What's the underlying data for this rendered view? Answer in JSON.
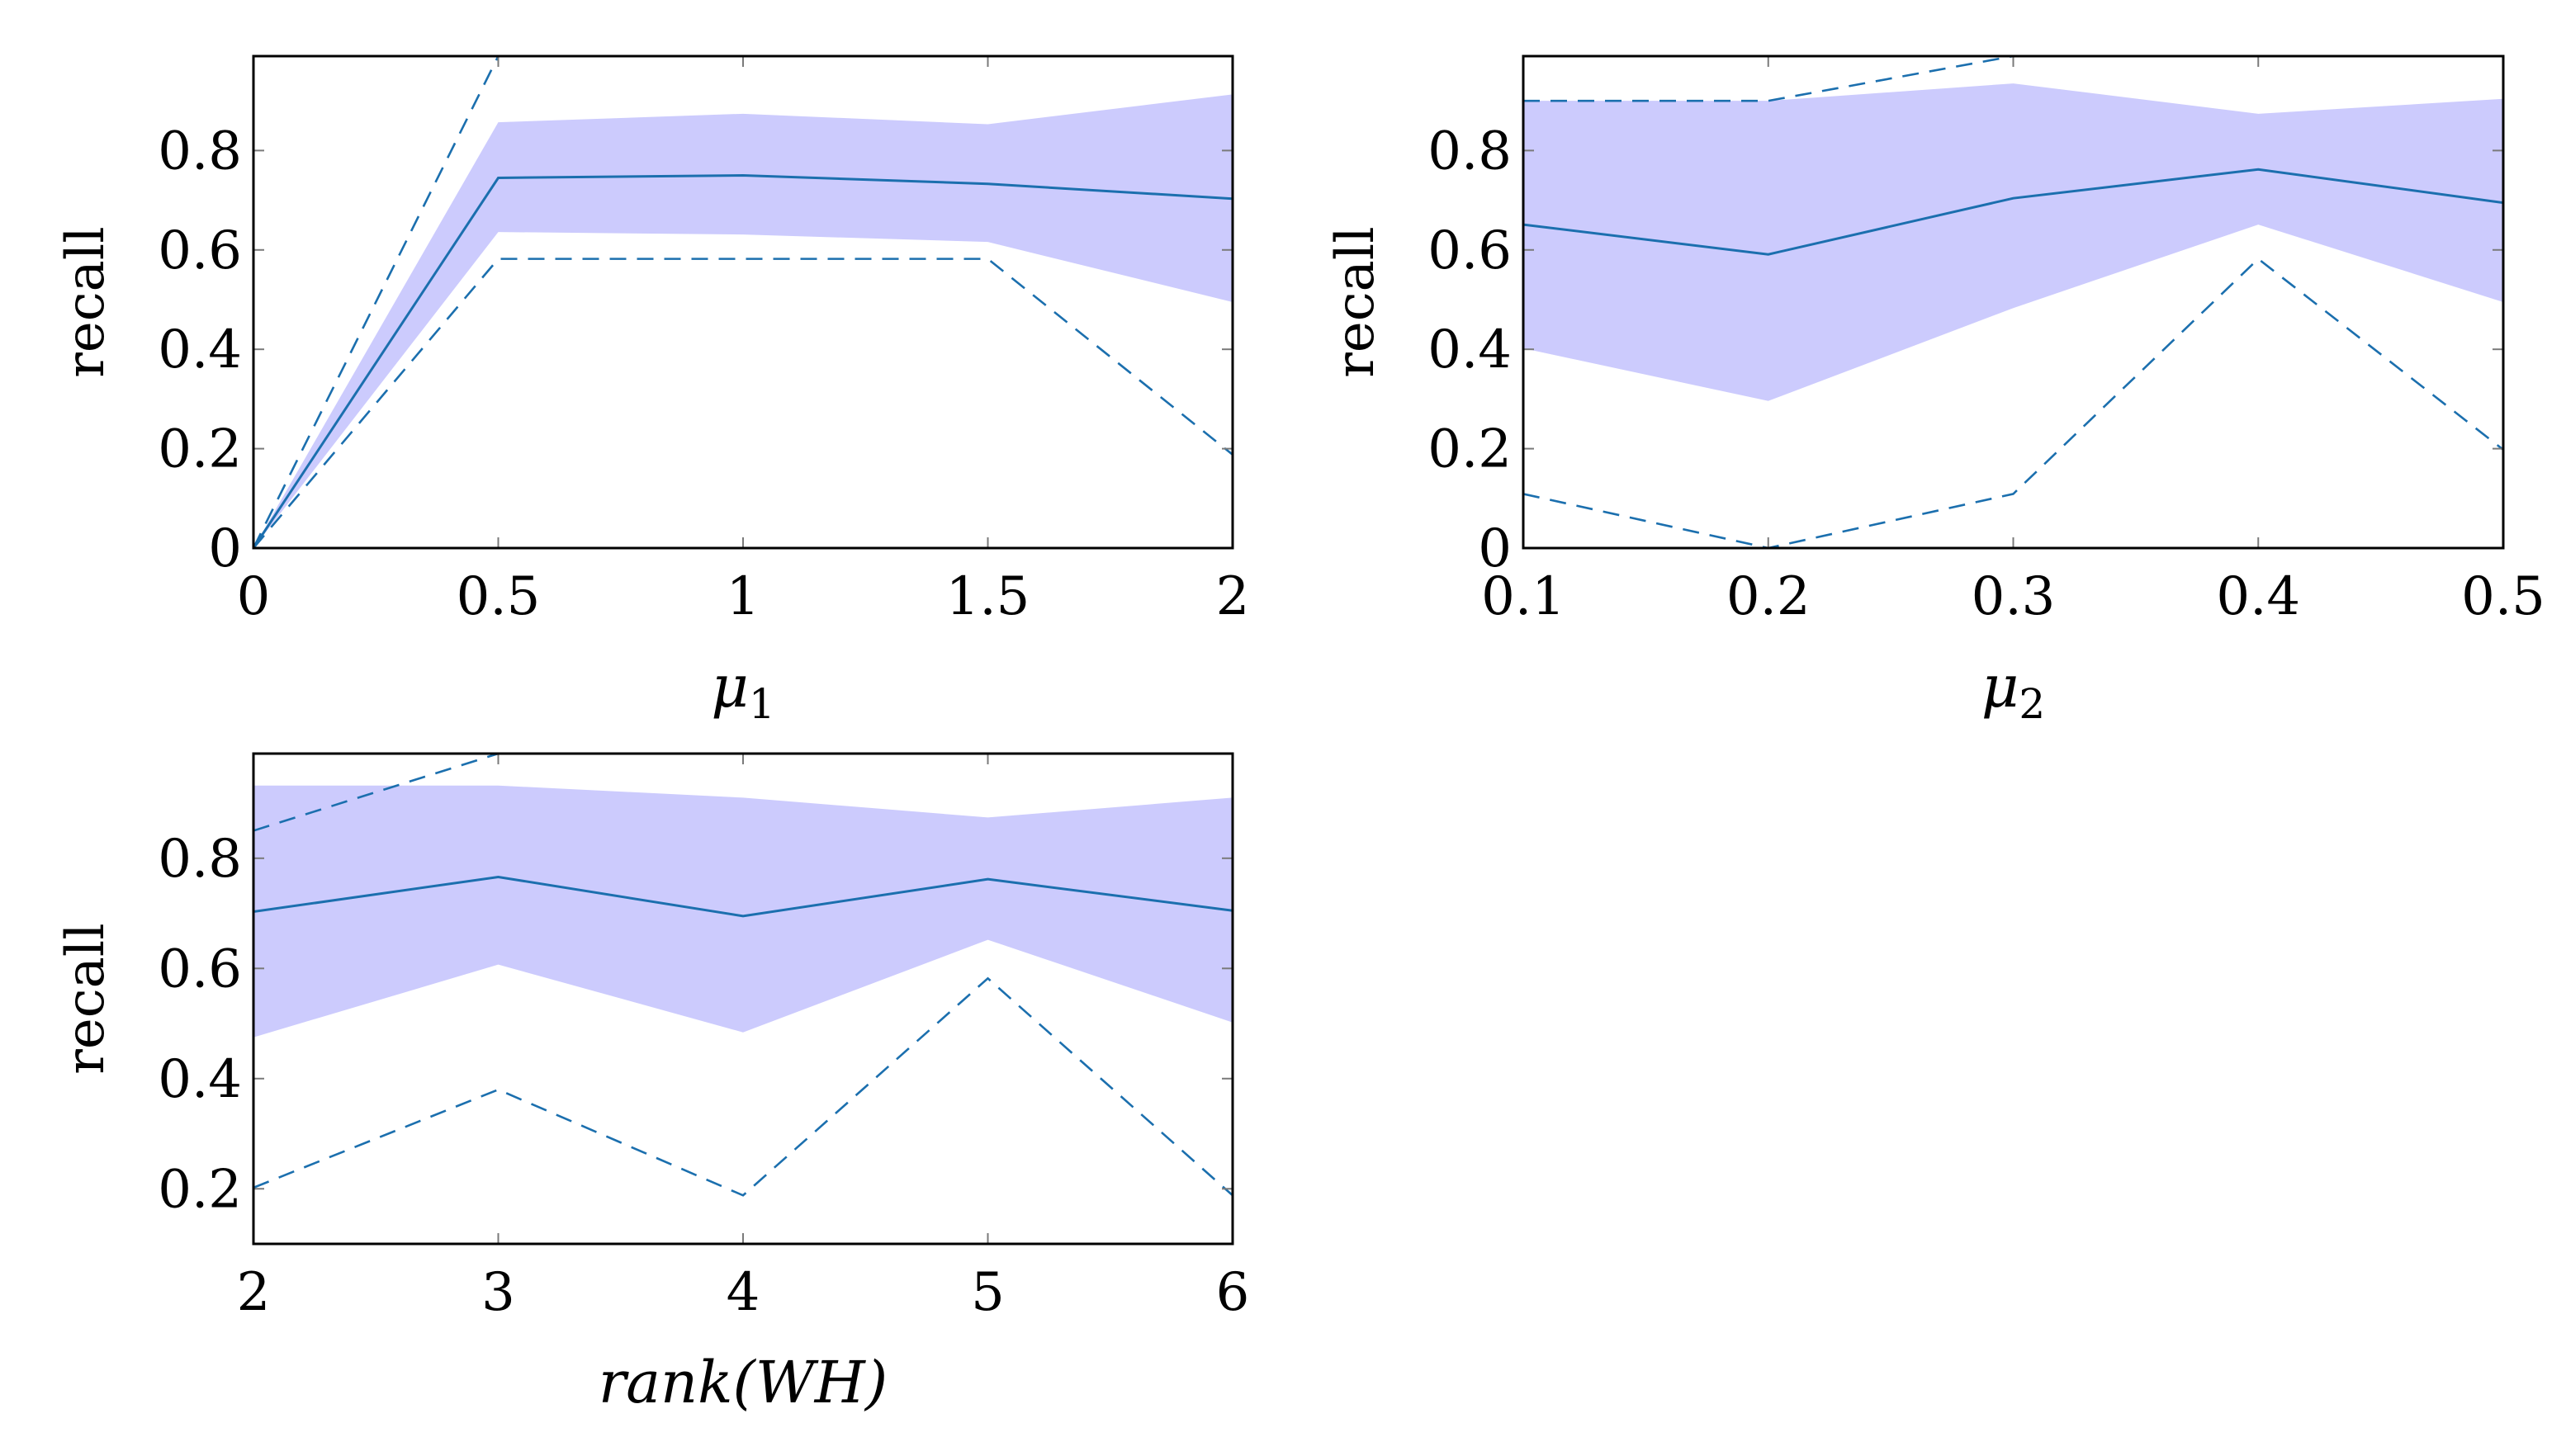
{
  "chart_data": [
    {
      "type": "line",
      "xlabel": "μ",
      "xlabel_subscript": "1",
      "ylabel": "recall",
      "xlim": [
        0,
        2
      ],
      "ylim": [
        0,
        0.99
      ],
      "x": [
        0,
        0.5,
        1,
        1.5,
        2
      ],
      "xtick_labels": [
        "0",
        "0.5",
        "1",
        "1.5",
        "2"
      ],
      "yticks": [
        0,
        0.2,
        0.4,
        0.6,
        0.8
      ],
      "ytick_labels": [
        "0",
        "0.2",
        "0.4",
        "0.6",
        "0.8"
      ],
      "series": [
        {
          "role": "mean",
          "style": "solid",
          "values": [
            0,
            0.745,
            0.75,
            0.733,
            0.703
          ]
        },
        {
          "role": "max",
          "style": "dashed",
          "values": [
            0,
            0.99,
            0.99,
            0.99,
            0.99
          ]
        },
        {
          "role": "min",
          "style": "dashed",
          "values": [
            0,
            0.582,
            0.582,
            0.582,
            0.188
          ]
        }
      ],
      "band": {
        "upper": [
          0,
          0.857,
          0.874,
          0.853,
          0.913
        ],
        "lower": [
          0,
          0.636,
          0.631,
          0.616,
          0.495
        ]
      }
    },
    {
      "type": "line",
      "xlabel": "μ",
      "xlabel_subscript": "2",
      "ylabel": "recall",
      "xlim": [
        0.1,
        0.5
      ],
      "ylim": [
        0,
        0.99
      ],
      "x": [
        0.1,
        0.2,
        0.3,
        0.4,
        0.5
      ],
      "xtick_labels": [
        "0.1",
        "0.2",
        "0.3",
        "0.4",
        "0.5"
      ],
      "yticks": [
        0,
        0.2,
        0.4,
        0.6,
        0.8
      ],
      "ytick_labels": [
        "0",
        "0.2",
        "0.4",
        "0.6",
        "0.8"
      ],
      "series": [
        {
          "role": "mean",
          "style": "solid",
          "values": [
            0.651,
            0.591,
            0.704,
            0.762,
            0.695
          ]
        },
        {
          "role": "max",
          "style": "dashed",
          "values": [
            0.9,
            0.9,
            0.99,
            0.99,
            0.99
          ]
        },
        {
          "role": "min",
          "style": "dashed",
          "values": [
            0.109,
            0,
            0.109,
            0.582,
            0.198
          ]
        }
      ],
      "band": {
        "upper": [
          0.9,
          0.9,
          0.935,
          0.874,
          0.904
        ],
        "lower": [
          0.402,
          0.296,
          0.483,
          0.651,
          0.495
        ]
      }
    },
    {
      "type": "line",
      "xlabel": "rank(WH)",
      "ylabel": "recall",
      "xlim": [
        2,
        6
      ],
      "ylim": [
        0.1,
        0.99
      ],
      "x": [
        2,
        3,
        4,
        5,
        6
      ],
      "xtick_labels": [
        "2",
        "3",
        "4",
        "5",
        "6"
      ],
      "yticks": [
        0.2,
        0.4,
        0.6,
        0.8
      ],
      "ytick_labels": [
        "0.2",
        "0.4",
        "0.6",
        "0.8"
      ],
      "series": [
        {
          "role": "mean",
          "style": "solid",
          "values": [
            0.703,
            0.766,
            0.695,
            0.762,
            0.705
          ]
        },
        {
          "role": "max",
          "style": "dashed",
          "values": [
            0.85,
            0.99,
            0.99,
            0.99,
            0.99
          ]
        },
        {
          "role": "min",
          "style": "dashed",
          "values": [
            0.202,
            0.38,
            0.188,
            0.582,
            0.188
          ]
        }
      ],
      "band": {
        "upper": [
          0.932,
          0.932,
          0.91,
          0.874,
          0.91
        ],
        "lower": [
          0.475,
          0.607,
          0.484,
          0.652,
          0.502
        ]
      }
    }
  ],
  "colors": {
    "line": "#1b6fae",
    "band": "#cccbfd",
    "axis": "#000000",
    "tick": "#7a7a7a"
  }
}
